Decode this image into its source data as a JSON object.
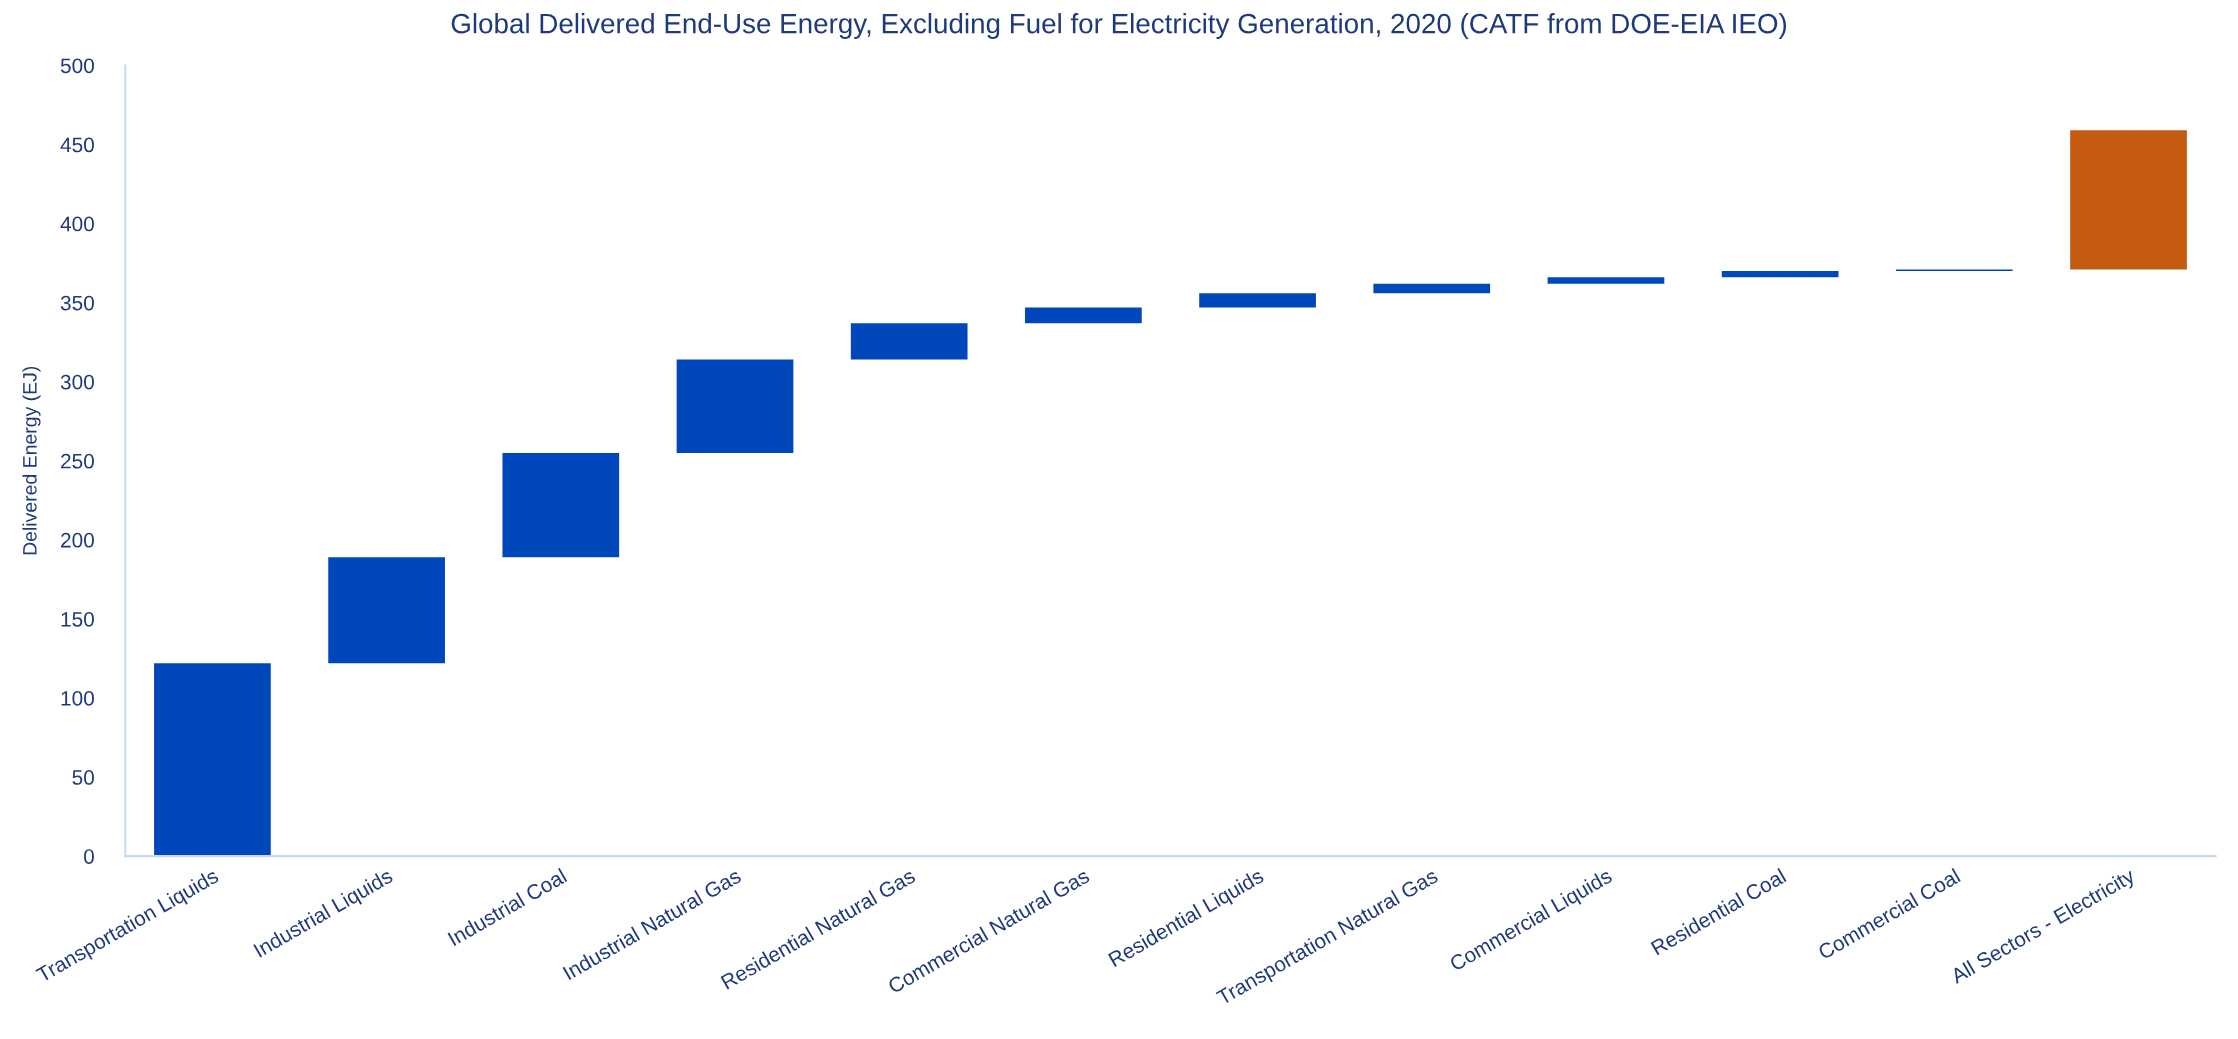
{
  "chart_data": {
    "type": "bar",
    "title": "Global Delivered End-Use Energy, Excluding Fuel for Electricity Generation, 2020 (CATF from DOE-EIA IEO)",
    "ylabel": "Delivered Energy (EJ)",
    "categories": [
      "Transportation Liquids",
      "Industrial Liquids",
      "Industrial Coal",
      "Industrial Natural Gas",
      "Residential Natural Gas",
      "Commercial Natural Gas",
      "Residential Liquids",
      "Transportation Natural Gas",
      "Commercial Liquids",
      "Residential Coal",
      "Commercial Coal",
      "All Sectors - Electricity"
    ],
    "values": [
      122,
      67,
      66,
      59,
      23,
      10,
      9,
      6,
      4,
      4,
      1,
      88
    ],
    "base": [
      0,
      122,
      189,
      255,
      314,
      337,
      347,
      356,
      362,
      366,
      370,
      371
    ],
    "colors": [
      "#0047bb",
      "#0047bb",
      "#0047bb",
      "#0047bb",
      "#0047bb",
      "#0047bb",
      "#0047bb",
      "#0047bb",
      "#0047bb",
      "#0047bb",
      "#0047bb",
      "#c55a11"
    ],
    "ylim": [
      0,
      500
    ],
    "yticks": [
      0,
      50,
      100,
      150,
      200,
      250,
      300,
      350,
      400,
      450,
      500
    ],
    "grid": false,
    "legend": false
  }
}
